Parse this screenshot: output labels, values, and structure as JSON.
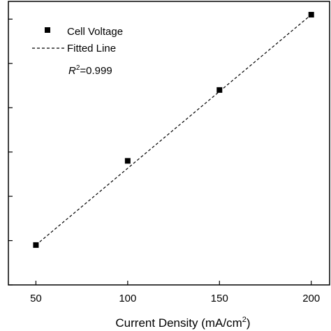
{
  "chart_data": {
    "type": "scatter",
    "x": [
      50,
      100,
      150,
      200
    ],
    "y": [
      0.45,
      1.4,
      2.2,
      3.05
    ],
    "xlim": [
      35,
      210
    ],
    "ylim": [
      -0.0,
      3.2
    ],
    "xticks": [
      50,
      100,
      150,
      200
    ],
    "xtick_labels": [
      "50",
      "100",
      "150",
      "200"
    ],
    "yticks_unlabeled": [
      0.0,
      0.5,
      1.0,
      1.5,
      2.0,
      2.5,
      3.0
    ],
    "xlabel_prefix": "Current Density (mA/cm",
    "xlabel_sup": "2",
    "xlabel_suffix": ")",
    "ylabel": "",
    "grid": false,
    "legend_placement": "top-left",
    "series": [
      {
        "name": "Cell Voltage",
        "marker": "square",
        "color": "#000000"
      }
    ],
    "fit": {
      "name": "Fitted Line",
      "style": "dashed",
      "color": "#000000"
    },
    "annotation": {
      "prefix": "R",
      "sup": "2",
      "suffix": "=0.999"
    }
  }
}
